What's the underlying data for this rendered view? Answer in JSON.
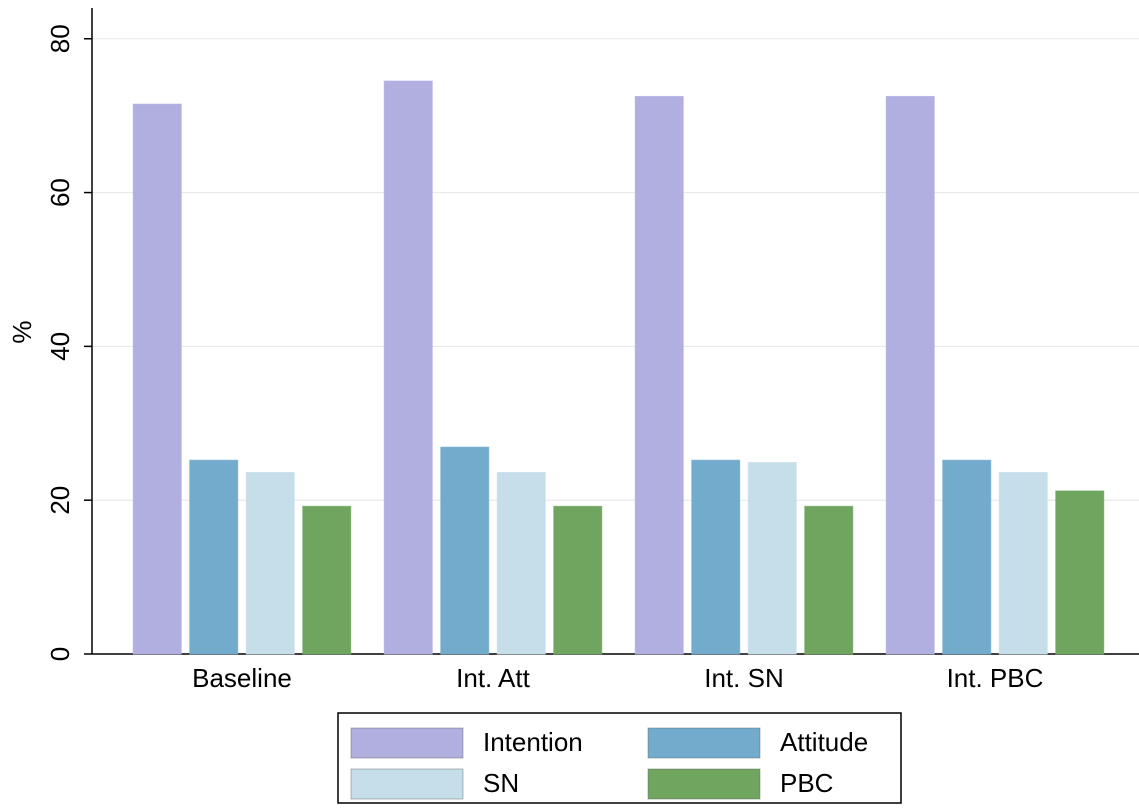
{
  "chart_data": {
    "type": "bar",
    "y_label": "%",
    "categories": [
      "Baseline",
      "Int. Att",
      "Int. SN",
      "Int. PBC"
    ],
    "series": [
      {
        "name": "Intention",
        "color": "#b1afdf",
        "values": [
          71.5,
          74.5,
          72.5,
          72.5
        ]
      },
      {
        "name": "Attitude",
        "color": "#73abcc",
        "values": [
          25.2,
          26.9,
          25.2,
          25.2
        ]
      },
      {
        "name": "SN",
        "color": "#c6dee9",
        "values": [
          23.6,
          23.6,
          24.9,
          23.6
        ]
      },
      {
        "name": "PBC",
        "color": "#70a560",
        "values": [
          19.2,
          19.2,
          19.2,
          21.2
        ]
      }
    ],
    "ylim": [
      0,
      84
    ],
    "yticks": [
      0,
      20,
      40,
      60,
      80
    ],
    "grid": true
  }
}
